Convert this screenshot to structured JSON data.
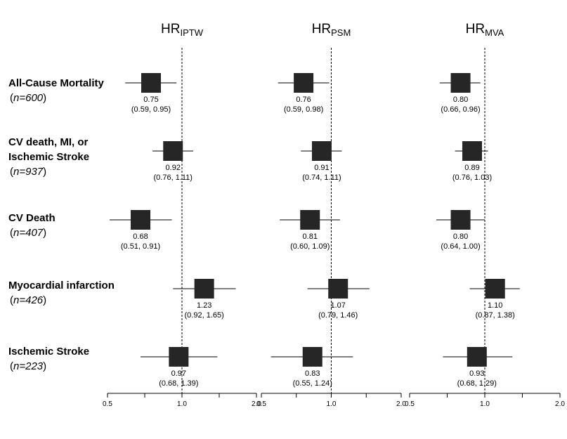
{
  "chart_data": {
    "type": "forest",
    "x_scale": "log",
    "xlim": [
      0.5,
      2.0
    ],
    "reference_line": 1.0,
    "x_ticks": [
      "0.5",
      "1.0",
      "2.0"
    ],
    "panels": [
      {
        "title": "HR",
        "subscript": "IPTW"
      },
      {
        "title": "HR",
        "subscript": "PSM"
      },
      {
        "title": "HR",
        "subscript": "MVA"
      }
    ],
    "outcomes": [
      {
        "label_lines": [
          "All-Cause Mortality"
        ],
        "n_text": "n=600",
        "estimates": [
          {
            "hr": 0.75,
            "lo": 0.59,
            "hi": 0.95,
            "hr_text": "0.75",
            "ci_text": "(0.59, 0.95)"
          },
          {
            "hr": 0.76,
            "lo": 0.59,
            "hi": 0.98,
            "hr_text": "0.76",
            "ci_text": "(0.59, 0.98)"
          },
          {
            "hr": 0.8,
            "lo": 0.66,
            "hi": 0.96,
            "hr_text": "0.80",
            "ci_text": "(0.66, 0.96)"
          }
        ]
      },
      {
        "label_lines": [
          "CV death, MI, or",
          "Ischemic Stroke"
        ],
        "n_text": "n=937",
        "estimates": [
          {
            "hr": 0.92,
            "lo": 0.76,
            "hi": 1.11,
            "hr_text": "0.92",
            "ci_text": "(0.76, 1.11)"
          },
          {
            "hr": 0.91,
            "lo": 0.74,
            "hi": 1.11,
            "hr_text": "0.91",
            "ci_text": "(0.74, 1.11)"
          },
          {
            "hr": 0.89,
            "lo": 0.76,
            "hi": 1.03,
            "hr_text": "0.89",
            "ci_text": "(0.76, 1.03)"
          }
        ]
      },
      {
        "label_lines": [
          "CV Death"
        ],
        "n_text": "n=407",
        "estimates": [
          {
            "hr": 0.68,
            "lo": 0.51,
            "hi": 0.91,
            "hr_text": "0.68",
            "ci_text": "(0.51, 0.91)"
          },
          {
            "hr": 0.81,
            "lo": 0.6,
            "hi": 1.09,
            "hr_text": "0.81",
            "ci_text": "(0.60, 1.09)"
          },
          {
            "hr": 0.8,
            "lo": 0.64,
            "hi": 1.0,
            "hr_text": "0.80",
            "ci_text": "(0.64, 1.00)"
          }
        ]
      },
      {
        "label_lines": [
          "Myocardial infarction"
        ],
        "n_text": "n=426",
        "estimates": [
          {
            "hr": 1.23,
            "lo": 0.92,
            "hi": 1.65,
            "hr_text": "1.23",
            "ci_text": "(0.92, 1.65)"
          },
          {
            "hr": 1.07,
            "lo": 0.79,
            "hi": 1.46,
            "hr_text": "1.07",
            "ci_text": "(0.79, 1.46)"
          },
          {
            "hr": 1.1,
            "lo": 0.87,
            "hi": 1.38,
            "hr_text": "1.10",
            "ci_text": "(0.87, 1.38)"
          }
        ]
      },
      {
        "label_lines": [
          "Ischemic Stroke"
        ],
        "n_text": "n=223",
        "estimates": [
          {
            "hr": 0.97,
            "lo": 0.68,
            "hi": 1.39,
            "hr_text": "0.97",
            "ci_text": "(0.68, 1.39)"
          },
          {
            "hr": 0.83,
            "lo": 0.55,
            "hi": 1.24,
            "hr_text": "0.83",
            "ci_text": "(0.55, 1.24)"
          },
          {
            "hr": 0.93,
            "lo": 0.68,
            "hi": 1.29,
            "hr_text": "0.93",
            "ci_text": "(0.68, 1.29)"
          }
        ]
      }
    ]
  }
}
